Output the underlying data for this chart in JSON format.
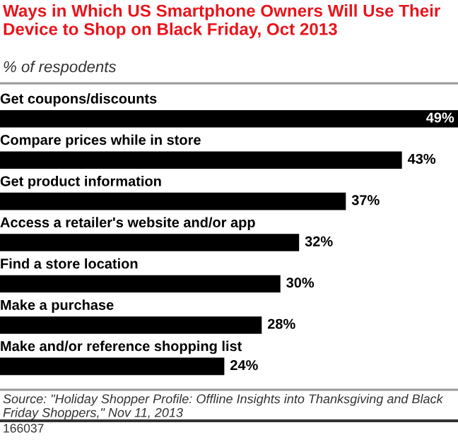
{
  "chart_data": {
    "type": "bar",
    "orientation": "horizontal",
    "title": "Ways in Which US Smartphone Owners Will Use Their Device to Shop on Black Friday, Oct 2013",
    "subtitle": "% of respodents",
    "categories": [
      "Get coupons/discounts",
      "Compare prices while in store",
      "Get product information",
      "Access a retailer's website and/or app",
      "Find a store location",
      "Make a purchase",
      "Make and/or reference shopping list"
    ],
    "values": [
      49,
      43,
      37,
      32,
      30,
      28,
      24
    ],
    "value_labels": [
      "49%",
      "43%",
      "37%",
      "32%",
      "30%",
      "28%",
      "24%"
    ],
    "color": "#000000",
    "xlim": [
      0,
      49
    ],
    "annotations": [
      "Source: \"Holiday Shopper Profile: Offline Insights into Thanksgiving and Black Friday Shoppers,\" Nov 11, 2013",
      "166037"
    ]
  }
}
